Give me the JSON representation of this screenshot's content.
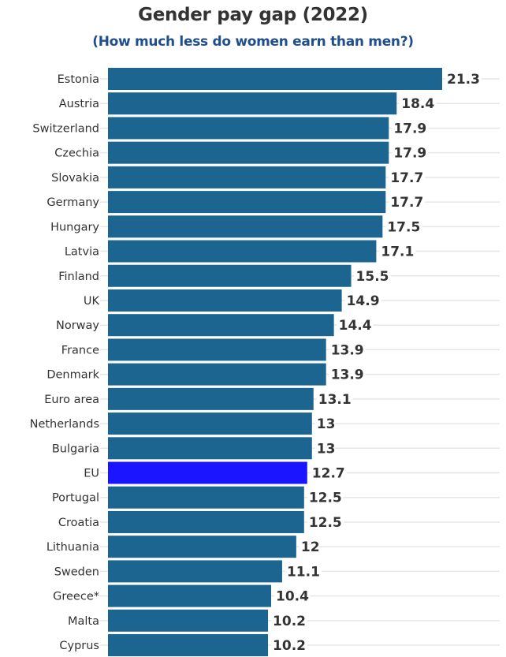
{
  "chart_data": {
    "type": "bar",
    "orientation": "horizontal",
    "title": "Gender pay gap (2022)",
    "subtitle": "(How much less do women earn than men?)",
    "xlabel": "",
    "ylabel": "",
    "xlim": [
      0,
      22
    ],
    "grid": true,
    "legend": "none",
    "categories": [
      "Estonia",
      "Austria",
      "Switzerland",
      "Czechia",
      "Slovakia",
      "Germany",
      "Hungary",
      "Latvia",
      "Finland",
      "UK",
      "Norway",
      "France",
      "Denmark",
      "Euro area",
      "Netherlands",
      "Bulgaria",
      "EU",
      "Portugal",
      "Croatia",
      "Lithuania",
      "Sweden",
      "Greece*",
      "Malta",
      "Cyprus"
    ],
    "values": [
      21.3,
      18.4,
      17.9,
      17.9,
      17.7,
      17.7,
      17.5,
      17.1,
      15.5,
      14.9,
      14.4,
      13.9,
      13.9,
      13.1,
      13,
      13,
      12.7,
      12.5,
      12.5,
      12,
      11.1,
      10.4,
      10.2,
      10.2
    ],
    "value_labels": [
      "21.3",
      "18.4",
      "17.9",
      "17.9",
      "17.7",
      "17.7",
      "17.5",
      "17.1",
      "15.5",
      "14.9",
      "14.4",
      "13.9",
      "13.9",
      "13.1",
      "13",
      "13",
      "12.7",
      "12.5",
      "12.5",
      "12",
      "11.1",
      "10.4",
      "10.2",
      "10.2"
    ],
    "highlight": "EU",
    "colors": {
      "default": "#1b6590",
      "highlight": "#1a14ff",
      "grid": "#e6e6e6",
      "text": "#333333",
      "subtitle": "#1f4e8c"
    }
  }
}
